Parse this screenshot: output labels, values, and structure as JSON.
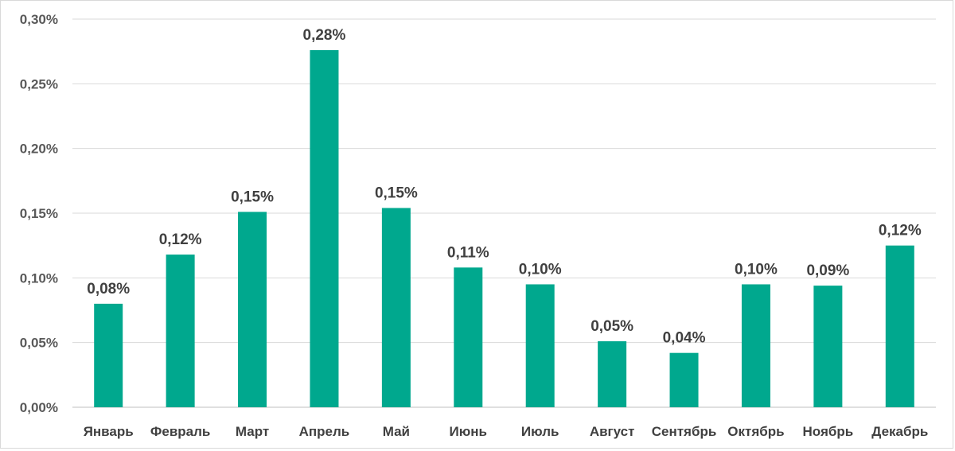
{
  "chart_data": {
    "type": "bar",
    "categories": [
      "Январь",
      "Февраль",
      "Март",
      "Апрель",
      "Май",
      "Июнь",
      "Июль",
      "Август",
      "Сентябрь",
      "Октябрь",
      "Ноябрь",
      "Декабрь"
    ],
    "values": [
      0.08,
      0.118,
      0.151,
      0.276,
      0.154,
      0.108,
      0.095,
      0.051,
      0.042,
      0.095,
      0.094,
      0.125
    ],
    "data_labels": [
      "0,08%",
      "0,12%",
      "0,15%",
      "0,28%",
      "0,15%",
      "0,11%",
      "0,10%",
      "0,05%",
      "0,04%",
      "0,10%",
      "0,09%",
      "0,12%"
    ],
    "y_ticks": [
      0,
      0.05,
      0.1,
      0.15,
      0.2,
      0.25,
      0.3
    ],
    "y_tick_labels": [
      "0,00%",
      "0,05%",
      "0,10%",
      "0,15%",
      "0,20%",
      "0,25%",
      "0,30%"
    ],
    "ylim": [
      0,
      0.3
    ],
    "title": "",
    "xlabel": "",
    "ylabel": "",
    "grid": true,
    "legend": "none",
    "colors": {
      "bar": "#00a88e",
      "grid": "#d9d9d9",
      "text": "#404040"
    }
  }
}
